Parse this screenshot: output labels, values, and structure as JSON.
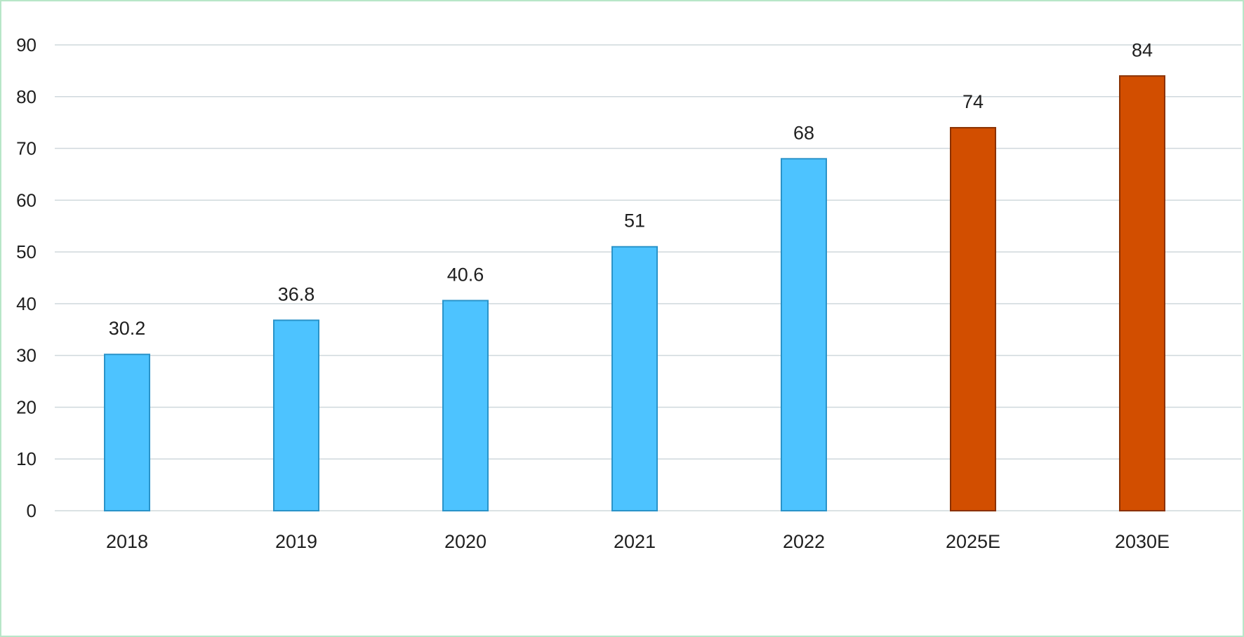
{
  "chart_data": {
    "type": "bar",
    "title": "",
    "xlabel": "",
    "ylabel": "",
    "categories": [
      "2018",
      "2019",
      "2020",
      "2021",
      "2022",
      "2025E",
      "2030E"
    ],
    "values": [
      30.2,
      36.8,
      40.6,
      51,
      68,
      74,
      84
    ],
    "data_labels": [
      "30.2",
      "36.8",
      "40.6",
      "51",
      "68",
      "74",
      "84"
    ],
    "bar_kind": [
      "actual",
      "actual",
      "actual",
      "actual",
      "actual",
      "estimate",
      "estimate"
    ],
    "ylim": [
      0,
      90
    ],
    "yticks": [
      0,
      10,
      20,
      30,
      40,
      50,
      60,
      70,
      80,
      90
    ],
    "grid": true,
    "legend": "none",
    "colors": {
      "actual_fill": "#4dc3ff",
      "actual_edge": "#2a93c9",
      "estimate_fill": "#d24e00",
      "estimate_edge": "#8a3100",
      "grid": "#cfd8dc",
      "text": "#1f1f1f"
    }
  }
}
